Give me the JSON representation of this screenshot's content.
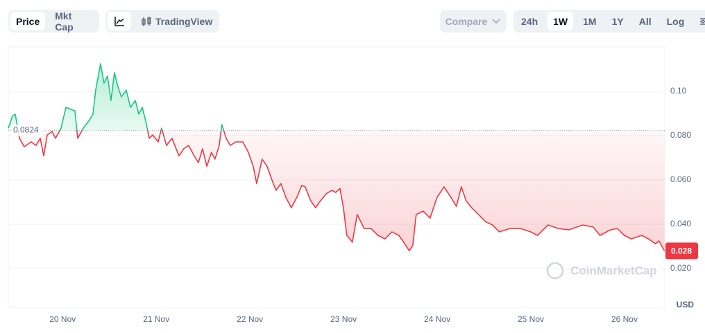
{
  "toolbar": {
    "price": "Price",
    "mkt_cap": "Mkt Cap",
    "tradingview": "TradingView",
    "compare": "Compare",
    "ranges": [
      "24h",
      "1W",
      "1M",
      "1Y",
      "All"
    ],
    "selected_range": 1,
    "log": "Log"
  },
  "watermark": "CoinMarketCap",
  "chart_data": {
    "type": "line",
    "y_label": "USD",
    "baseline": 0.0824,
    "color_above": "#16c784",
    "color_below": "#ea3943",
    "xlim": [
      19.42,
      26.43
    ],
    "ylim": [
      0.0025,
      0.12
    ],
    "xticks": [
      {
        "value": 20,
        "label": "20 Nov"
      },
      {
        "value": 21,
        "label": "21 Nov"
      },
      {
        "value": 22,
        "label": "22 Nov"
      },
      {
        "value": 23,
        "label": "23 Nov"
      },
      {
        "value": 24,
        "label": "24 Nov"
      },
      {
        "value": 25,
        "label": "25 Nov"
      },
      {
        "value": 26,
        "label": "26 Nov"
      }
    ],
    "yticks": [
      {
        "value": 0.02,
        "label": "0.020"
      },
      {
        "value": 0.04,
        "label": "0.040"
      },
      {
        "value": 0.06,
        "label": "0.060"
      },
      {
        "value": 0.08,
        "label": "0.080"
      },
      {
        "value": 0.1,
        "label": "0.10"
      }
    ],
    "grid": true,
    "x": [
      19.42,
      19.464,
      19.494,
      19.539,
      19.59,
      19.664,
      19.716,
      19.761,
      19.798,
      19.835,
      19.887,
      19.924,
      19.983,
      20.035,
      20.087,
      20.131,
      20.161,
      20.22,
      20.279,
      20.324,
      20.353,
      20.405,
      20.442,
      20.479,
      20.516,
      20.553,
      20.59,
      20.627,
      20.679,
      20.724,
      20.776,
      20.813,
      20.85,
      20.887,
      20.924,
      20.961,
      21.02,
      21.057,
      21.109,
      21.168,
      21.242,
      21.294,
      21.346,
      21.405,
      21.45,
      21.494,
      21.539,
      21.59,
      21.627,
      21.672,
      21.701,
      21.746,
      21.79,
      21.85,
      21.924,
      21.983,
      22.035,
      22.072,
      22.131,
      22.183,
      22.235,
      22.279,
      22.331,
      22.383,
      22.442,
      22.501,
      22.553,
      22.59,
      22.649,
      22.701,
      22.753,
      22.813,
      22.872,
      22.916,
      22.961,
      22.998,
      23.035,
      23.094,
      23.146,
      23.22,
      23.294,
      23.368,
      23.442,
      23.516,
      23.59,
      23.642,
      23.701,
      23.739,
      23.776,
      23.85,
      23.924,
      23.999,
      24.073,
      24.146,
      24.205,
      24.257,
      24.309,
      24.368,
      24.442,
      24.516,
      24.59,
      24.664,
      24.776,
      24.887,
      24.998,
      25.072,
      25.183,
      25.294,
      25.405,
      25.553,
      25.664,
      25.739,
      25.85,
      25.924,
      25.998,
      26.072,
      26.183,
      26.257,
      26.331,
      26.368,
      26.427
    ],
    "values": [
      0.0834,
      0.0888,
      0.0897,
      0.0788,
      0.075,
      0.0772,
      0.0756,
      0.0788,
      0.0709,
      0.0803,
      0.0819,
      0.0788,
      0.0834,
      0.0928,
      0.0919,
      0.0912,
      0.0788,
      0.0834,
      0.0866,
      0.0897,
      0.1006,
      0.1125,
      0.1037,
      0.1069,
      0.0959,
      0.1084,
      0.1022,
      0.0975,
      0.1006,
      0.0928,
      0.0959,
      0.0897,
      0.0928,
      0.0866,
      0.0788,
      0.0803,
      0.0772,
      0.0834,
      0.0756,
      0.0788,
      0.0709,
      0.0741,
      0.0756,
      0.0709,
      0.0678,
      0.0741,
      0.0662,
      0.0725,
      0.0694,
      0.0756,
      0.085,
      0.0788,
      0.0756,
      0.0772,
      0.0772,
      0.0725,
      0.0662,
      0.0584,
      0.0694,
      0.0662,
      0.06,
      0.0553,
      0.0584,
      0.0522,
      0.0475,
      0.0522,
      0.0575,
      0.0569,
      0.0506,
      0.0475,
      0.0506,
      0.0537,
      0.0553,
      0.0544,
      0.0562,
      0.0475,
      0.035,
      0.0319,
      0.0444,
      0.0381,
      0.0381,
      0.035,
      0.0334,
      0.0366,
      0.035,
      0.0319,
      0.0281,
      0.0303,
      0.0444,
      0.0459,
      0.0428,
      0.0522,
      0.0569,
      0.0522,
      0.0481,
      0.0569,
      0.0506,
      0.0475,
      0.0444,
      0.0412,
      0.0397,
      0.0366,
      0.0381,
      0.0381,
      0.0366,
      0.035,
      0.0397,
      0.0381,
      0.0375,
      0.0397,
      0.0388,
      0.035,
      0.0375,
      0.0381,
      0.035,
      0.0334,
      0.035,
      0.0334,
      0.0312,
      0.0325,
      0.028
    ]
  }
}
